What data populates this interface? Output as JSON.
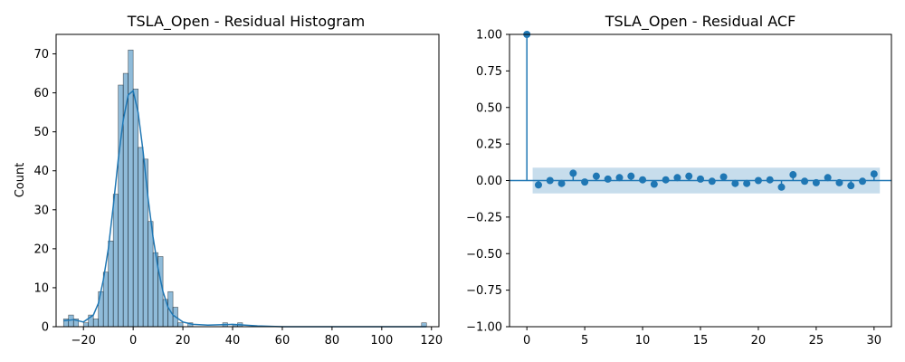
{
  "chart_data": [
    {
      "type": "bar",
      "title": "TSLA_Open - Residual Histogram",
      "xlabel": "",
      "ylabel": "Count",
      "xlim": [
        -31,
        123
      ],
      "ylim": [
        0,
        75
      ],
      "xticks": [
        -20,
        0,
        20,
        40,
        60,
        80,
        100,
        120
      ],
      "yticks": [
        0,
        10,
        20,
        30,
        40,
        50,
        60,
        70
      ],
      "bin_width": 2,
      "bins": [
        {
          "x0": -28,
          "count": 2
        },
        {
          "x0": -26,
          "count": 3
        },
        {
          "x0": -24,
          "count": 2
        },
        {
          "x0": -20,
          "count": 1
        },
        {
          "x0": -18,
          "count": 3
        },
        {
          "x0": -16,
          "count": 2
        },
        {
          "x0": -14,
          "count": 9
        },
        {
          "x0": -12,
          "count": 14
        },
        {
          "x0": -10,
          "count": 22
        },
        {
          "x0": -8,
          "count": 34
        },
        {
          "x0": -6,
          "count": 62
        },
        {
          "x0": -4,
          "count": 65
        },
        {
          "x0": -2,
          "count": 71
        },
        {
          "x0": 0,
          "count": 61
        },
        {
          "x0": 2,
          "count": 46
        },
        {
          "x0": 4,
          "count": 43
        },
        {
          "x0": 6,
          "count": 27
        },
        {
          "x0": 8,
          "count": 19
        },
        {
          "x0": 10,
          "count": 18
        },
        {
          "x0": 12,
          "count": 7
        },
        {
          "x0": 14,
          "count": 9
        },
        {
          "x0": 16,
          "count": 5
        },
        {
          "x0": 18,
          "count": 1
        },
        {
          "x0": 22,
          "count": 1
        },
        {
          "x0": 36,
          "count": 1
        },
        {
          "x0": 40,
          "count": 0.5
        },
        {
          "x0": 42,
          "count": 1
        },
        {
          "x0": 116,
          "count": 1
        }
      ],
      "kde": {
        "x": [
          -28,
          -24,
          -20,
          -16,
          -14,
          -12,
          -10,
          -8,
          -6,
          -4,
          -2,
          0,
          2,
          4,
          6,
          8,
          10,
          12,
          14,
          16,
          20,
          24,
          30,
          40,
          50,
          60,
          80,
          100,
          118
        ],
        "y": [
          1.5,
          1.8,
          1.2,
          3,
          6,
          12,
          20,
          31,
          43,
          53,
          59.5,
          60.5,
          55,
          45,
          33,
          23,
          15,
          9,
          5,
          3,
          1.2,
          0.6,
          0.4,
          0.6,
          0.2,
          0,
          0,
          0,
          0
        ]
      },
      "color": "#1f77b4"
    },
    {
      "type": "scatter",
      "title": "TSLA_Open - Residual ACF",
      "xlabel": "",
      "ylabel": "",
      "xlim": [
        -1.5,
        31.5
      ],
      "ylim": [
        -1.0,
        1.0
      ],
      "xticks": [
        0,
        5,
        10,
        15,
        20,
        25,
        30
      ],
      "yticks": [
        "-1.00",
        "-0.75",
        "-0.50",
        "-0.25",
        "0.00",
        "0.25",
        "0.50",
        "0.75",
        "1.00"
      ],
      "lags": [
        0,
        1,
        2,
        3,
        4,
        5,
        6,
        7,
        8,
        9,
        10,
        11,
        12,
        13,
        14,
        15,
        16,
        17,
        18,
        19,
        20,
        21,
        22,
        23,
        24,
        25,
        26,
        27,
        28,
        29,
        30
      ],
      "acf": [
        1.0,
        -0.03,
        0.0,
        -0.02,
        0.05,
        -0.01,
        0.03,
        0.01,
        0.02,
        0.03,
        0.005,
        -0.025,
        0.005,
        0.02,
        0.03,
        0.01,
        -0.005,
        0.025,
        -0.02,
        -0.02,
        0.0,
        0.005,
        -0.045,
        0.04,
        -0.005,
        -0.015,
        0.02,
        -0.015,
        -0.035,
        -0.005,
        0.045
      ],
      "confidence_band": [
        -0.088,
        0.088
      ],
      "color": "#1f77b4"
    }
  ]
}
